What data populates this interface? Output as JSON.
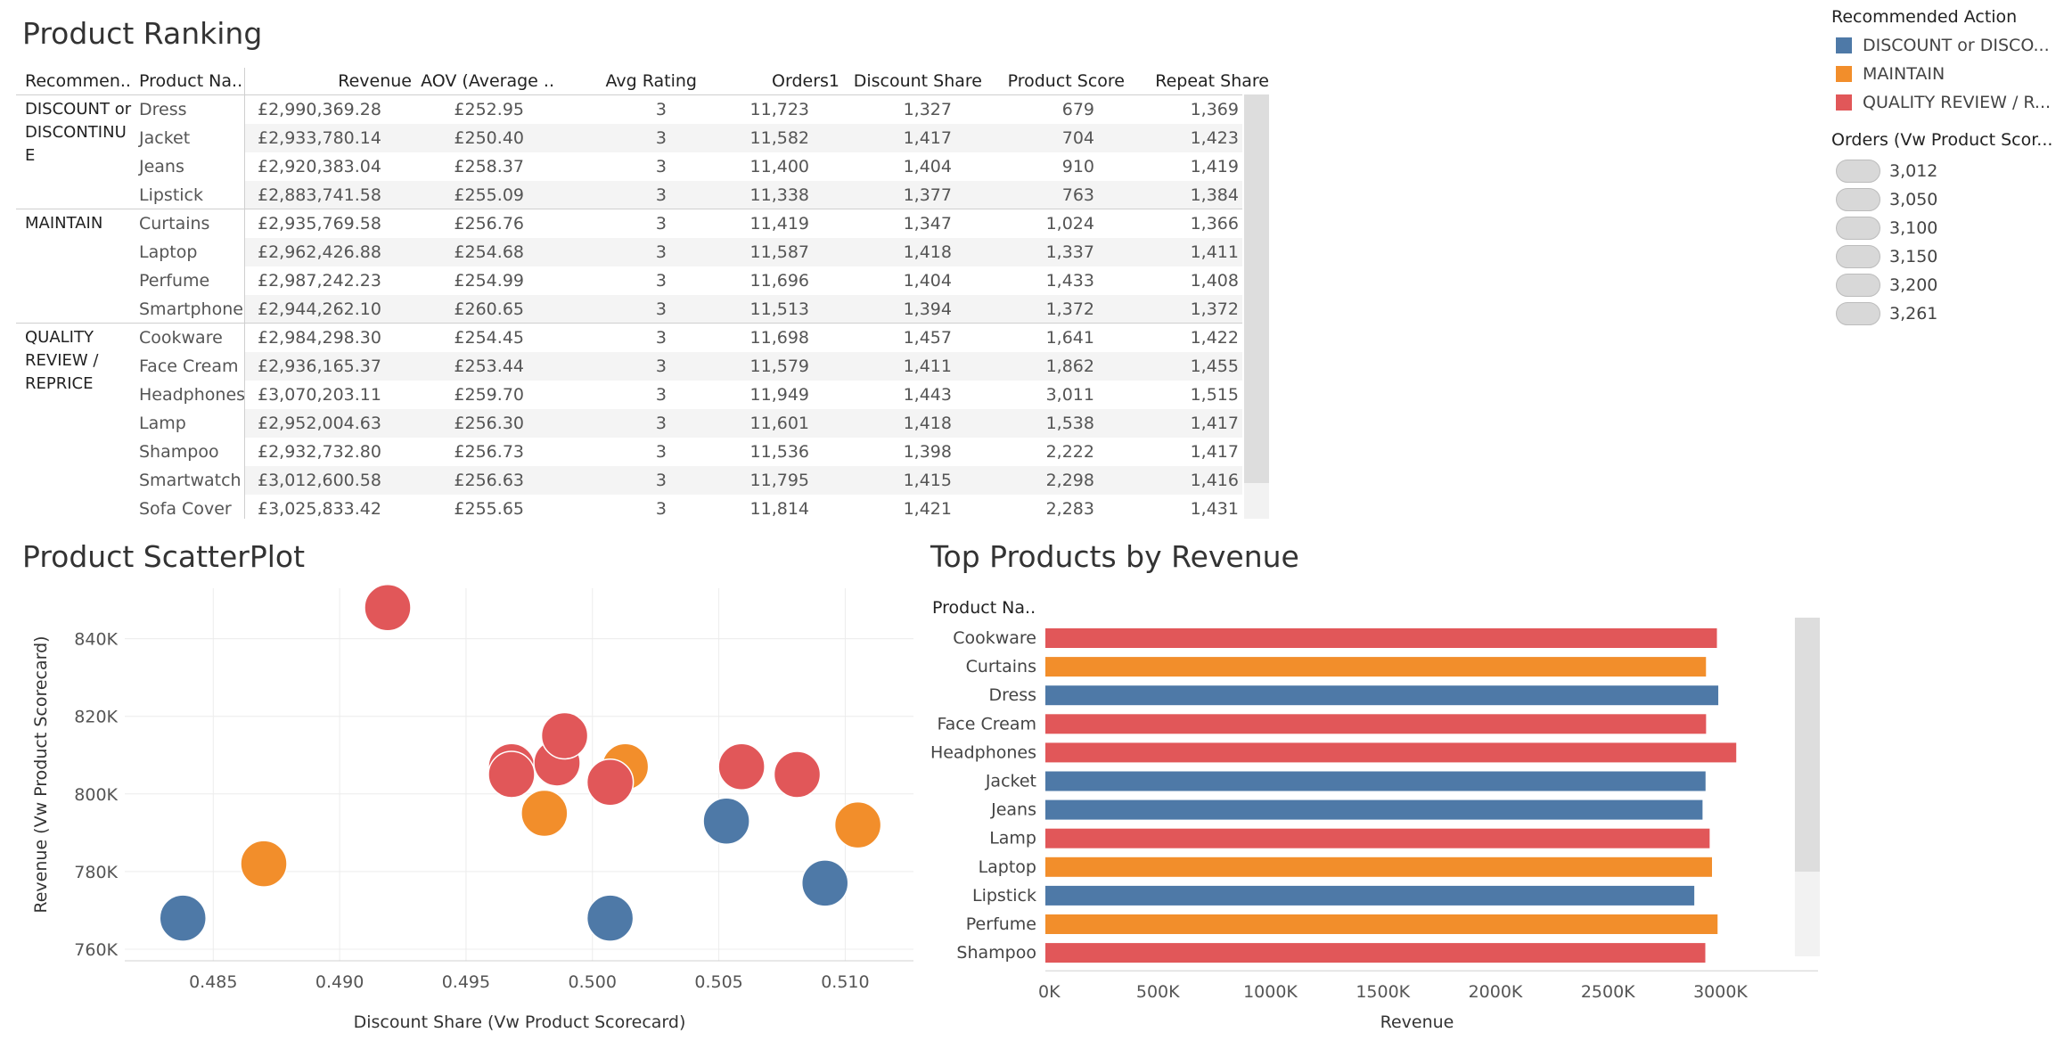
{
  "ranking": {
    "title": "Product Ranking",
    "columns": [
      "Recommen..",
      "Product Na..",
      "Revenue",
      "AOV (Average ..",
      "Avg Rating",
      "Orders1",
      "Discount Share",
      "Product Score",
      "Repeat Share"
    ],
    "groups": [
      {
        "label": "DISCOUNT or DISCONTINU E",
        "rows": [
          [
            "Dress",
            "£2,990,369.28",
            "£252.95",
            "3",
            "11,723",
            "1,327",
            "679",
            "1,369"
          ],
          [
            "Jacket",
            "£2,933,780.14",
            "£250.40",
            "3",
            "11,582",
            "1,417",
            "704",
            "1,423"
          ],
          [
            "Jeans",
            "£2,920,383.04",
            "£258.37",
            "3",
            "11,400",
            "1,404",
            "910",
            "1,419"
          ],
          [
            "Lipstick",
            "£2,883,741.58",
            "£255.09",
            "3",
            "11,338",
            "1,377",
            "763",
            "1,384"
          ]
        ]
      },
      {
        "label": "MAINTAIN",
        "rows": [
          [
            "Curtains",
            "£2,935,769.58",
            "£256.76",
            "3",
            "11,419",
            "1,347",
            "1,024",
            "1,366"
          ],
          [
            "Laptop",
            "£2,962,426.88",
            "£254.68",
            "3",
            "11,587",
            "1,418",
            "1,337",
            "1,411"
          ],
          [
            "Perfume",
            "£2,987,242.23",
            "£254.99",
            "3",
            "11,696",
            "1,404",
            "1,433",
            "1,408"
          ],
          [
            "Smartphone",
            "£2,944,262.10",
            "£260.65",
            "3",
            "11,513",
            "1,394",
            "1,372",
            "1,372"
          ]
        ]
      },
      {
        "label": "QUALITY REVIEW / REPRICE",
        "rows": [
          [
            "Cookware",
            "£2,984,298.30",
            "£254.45",
            "3",
            "11,698",
            "1,457",
            "1,641",
            "1,422"
          ],
          [
            "Face Cream",
            "£2,936,165.37",
            "£253.44",
            "3",
            "11,579",
            "1,411",
            "1,862",
            "1,455"
          ],
          [
            "Headphones",
            "£3,070,203.11",
            "£259.70",
            "3",
            "11,949",
            "1,443",
            "3,011",
            "1,515"
          ],
          [
            "Lamp",
            "£2,952,004.63",
            "£256.30",
            "3",
            "11,601",
            "1,418",
            "1,538",
            "1,417"
          ],
          [
            "Shampoo",
            "£2,932,732.80",
            "£256.73",
            "3",
            "11,536",
            "1,398",
            "2,222",
            "1,417"
          ],
          [
            "Smartwatch",
            "£3,012,600.58",
            "£256.63",
            "3",
            "11,795",
            "1,415",
            "2,298",
            "1,416"
          ],
          [
            "Sofa Cover",
            "£3,025,833.42",
            "£255.65",
            "3",
            "11,814",
            "1,421",
            "2,283",
            "1,431"
          ]
        ]
      }
    ]
  },
  "legend": {
    "title": "Recommended Action",
    "items": [
      {
        "label": "DISCOUNT or DISCO...",
        "color": "#4e79a7"
      },
      {
        "label": "MAINTAIN",
        "color": "#f28e2b"
      },
      {
        "label": "QUALITY REVIEW / R...",
        "color": "#e15759"
      }
    ],
    "size_title": "Orders (Vw Product Scor...",
    "size_items": [
      "3,012",
      "3,050",
      "3,100",
      "3,150",
      "3,200",
      "3,261"
    ]
  },
  "chart_data": [
    {
      "type": "scatter",
      "title": "Product ScatterPlot",
      "xlabel": "Discount Share (Vw Product Scorecard)",
      "ylabel": "Revenue (Vw Product Scorecard)",
      "xlim": [
        0.4815,
        0.5127
      ],
      "ylim": [
        757,
        853
      ],
      "x_ticks": [
        0.485,
        0.49,
        0.495,
        0.5,
        0.505,
        0.51
      ],
      "x_tick_labels": [
        "0.485",
        "0.490",
        "0.495",
        "0.500",
        "0.505",
        "0.510"
      ],
      "y_ticks": [
        760,
        780,
        800,
        820,
        840
      ],
      "y_tick_labels": [
        "760K",
        "780K",
        "800K",
        "820K",
        "840K"
      ],
      "grid": true,
      "colors": {
        "DISCOUNT": "#4e79a7",
        "MAINTAIN": "#f28e2b",
        "QUALITY": "#e15759"
      },
      "points": [
        {
          "x": 0.4838,
          "y": 768,
          "group": "DISCOUNT"
        },
        {
          "x": 0.5007,
          "y": 768,
          "group": "DISCOUNT"
        },
        {
          "x": 0.5053,
          "y": 793,
          "group": "DISCOUNT"
        },
        {
          "x": 0.5092,
          "y": 777,
          "group": "DISCOUNT"
        },
        {
          "x": 0.487,
          "y": 782,
          "group": "MAINTAIN"
        },
        {
          "x": 0.4981,
          "y": 795,
          "group": "MAINTAIN"
        },
        {
          "x": 0.5013,
          "y": 807,
          "group": "MAINTAIN"
        },
        {
          "x": 0.5105,
          "y": 792,
          "group": "MAINTAIN"
        },
        {
          "x": 0.4919,
          "y": 848,
          "group": "QUALITY"
        },
        {
          "x": 0.4968,
          "y": 807,
          "group": "QUALITY"
        },
        {
          "x": 0.4968,
          "y": 805,
          "group": "QUALITY"
        },
        {
          "x": 0.4986,
          "y": 808,
          "group": "QUALITY"
        },
        {
          "x": 0.4989,
          "y": 815,
          "group": "QUALITY"
        },
        {
          "x": 0.5007,
          "y": 803,
          "group": "QUALITY"
        },
        {
          "x": 0.5059,
          "y": 807,
          "group": "QUALITY"
        },
        {
          "x": 0.5081,
          "y": 805,
          "group": "QUALITY"
        }
      ]
    },
    {
      "type": "bar",
      "orientation": "horizontal",
      "title": "Top Products by Revenue",
      "ylabel": "Product Na..",
      "xlabel": "Revenue",
      "xlim": [
        0,
        3200000
      ],
      "x_ticks": [
        0,
        500000,
        1000000,
        1500000,
        2000000,
        2500000,
        3000000
      ],
      "x_tick_labels": [
        "0K",
        "500K",
        "1000K",
        "1500K",
        "2000K",
        "2500K",
        "3000K"
      ],
      "categories": [
        "Cookware",
        "Curtains",
        "Dress",
        "Face Cream",
        "Headphones",
        "Jacket",
        "Jeans",
        "Lamp",
        "Laptop",
        "Lipstick",
        "Perfume",
        "Shampoo"
      ],
      "values": [
        2984298.3,
        2935769.58,
        2990369.28,
        2936165.37,
        3070203.11,
        2933780.14,
        2920383.04,
        2952004.63,
        2962426.88,
        2883741.58,
        2987242.23,
        2932732.8
      ],
      "colors": [
        "#e15759",
        "#f28e2b",
        "#4e79a7",
        "#e15759",
        "#e15759",
        "#4e79a7",
        "#4e79a7",
        "#e15759",
        "#f28e2b",
        "#4e79a7",
        "#f28e2b",
        "#e15759"
      ]
    }
  ]
}
